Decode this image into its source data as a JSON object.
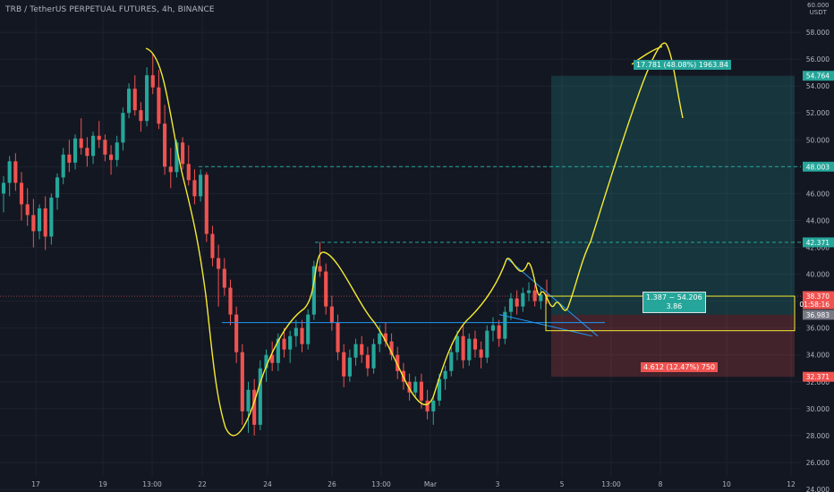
{
  "header": {
    "symbol_line": "TRB / TetherUS PERPETUAL FUTURES, 4h, BINANCE",
    "currency_top": "60.000",
    "currency": "USDT"
  },
  "chart_data": {
    "type": "candlestick",
    "ylim": [
      23.8,
      60.4
    ],
    "yticks": [
      24,
      26,
      28,
      30,
      32,
      34,
      36,
      38,
      40,
      42,
      44,
      46,
      48,
      50,
      52,
      54,
      56,
      58
    ],
    "ytick_labels": [
      "24.000",
      "26.000",
      "28.000",
      "30.000",
      "32.000",
      "34.000",
      "36.000",
      "38.000",
      "40.000",
      "42.000",
      "44.000",
      "46.000",
      "48.000",
      "50.000",
      "52.000",
      "54.000",
      "56.000",
      "58.000"
    ],
    "xticks": [
      "17",
      "19",
      "13:00",
      "22",
      "24",
      "26",
      "13:00",
      "Mar",
      "3",
      "5",
      "13:00",
      "8",
      "10",
      "12"
    ],
    "colors": {
      "up": "#26a69a",
      "down": "#ef5350",
      "grid": "#1e222d",
      "axis_text": "#b2b5be",
      "drawing": "#f5eb32",
      "trendline": "#2196f3"
    },
    "candles": [
      {
        "o": 46.0,
        "h": 47.3,
        "l": 44.6,
        "c": 46.8
      },
      {
        "o": 46.8,
        "h": 48.8,
        "l": 45.8,
        "c": 48.4
      },
      {
        "o": 48.4,
        "h": 49.0,
        "l": 46.2,
        "c": 46.8
      },
      {
        "o": 46.8,
        "h": 47.6,
        "l": 44.0,
        "c": 45.2
      },
      {
        "o": 45.2,
        "h": 46.4,
        "l": 43.6,
        "c": 44.4
      },
      {
        "o": 44.4,
        "h": 45.6,
        "l": 42.0,
        "c": 43.2
      },
      {
        "o": 43.2,
        "h": 45.2,
        "l": 42.6,
        "c": 44.9
      },
      {
        "o": 44.9,
        "h": 45.8,
        "l": 41.8,
        "c": 42.8
      },
      {
        "o": 42.8,
        "h": 46.0,
        "l": 42.2,
        "c": 45.7
      },
      {
        "o": 45.7,
        "h": 47.5,
        "l": 44.8,
        "c": 47.2
      },
      {
        "o": 47.2,
        "h": 49.4,
        "l": 46.7,
        "c": 48.9
      },
      {
        "o": 48.9,
        "h": 50.0,
        "l": 47.6,
        "c": 48.3
      },
      {
        "o": 48.3,
        "h": 50.4,
        "l": 47.8,
        "c": 50.1
      },
      {
        "o": 50.1,
        "h": 51.6,
        "l": 48.9,
        "c": 49.4
      },
      {
        "o": 49.4,
        "h": 50.2,
        "l": 48.0,
        "c": 48.8
      },
      {
        "o": 48.8,
        "h": 50.6,
        "l": 48.2,
        "c": 50.3
      },
      {
        "o": 50.3,
        "h": 51.4,
        "l": 49.4,
        "c": 50.0
      },
      {
        "o": 50.0,
        "h": 50.4,
        "l": 48.4,
        "c": 48.9
      },
      {
        "o": 48.9,
        "h": 49.6,
        "l": 47.4,
        "c": 48.5
      },
      {
        "o": 48.5,
        "h": 50.3,
        "l": 48.0,
        "c": 49.8
      },
      {
        "o": 49.8,
        "h": 52.4,
        "l": 49.2,
        "c": 52.0
      },
      {
        "o": 52.0,
        "h": 54.2,
        "l": 51.6,
        "c": 53.8
      },
      {
        "o": 53.8,
        "h": 54.8,
        "l": 51.8,
        "c": 52.2
      },
      {
        "o": 52.2,
        "h": 52.8,
        "l": 50.6,
        "c": 51.4
      },
      {
        "o": 51.4,
        "h": 55.4,
        "l": 51.0,
        "c": 54.8
      },
      {
        "o": 54.8,
        "h": 56.4,
        "l": 53.4,
        "c": 53.9
      },
      {
        "o": 53.9,
        "h": 55.2,
        "l": 50.8,
        "c": 51.2
      },
      {
        "o": 51.2,
        "h": 52.6,
        "l": 47.4,
        "c": 48.0
      },
      {
        "o": 48.0,
        "h": 49.4,
        "l": 46.4,
        "c": 47.6
      },
      {
        "o": 47.6,
        "h": 50.0,
        "l": 47.2,
        "c": 49.8
      },
      {
        "o": 49.8,
        "h": 50.2,
        "l": 47.8,
        "c": 48.2
      },
      {
        "o": 48.2,
        "h": 49.6,
        "l": 46.6,
        "c": 47.0
      },
      {
        "o": 47.0,
        "h": 47.8,
        "l": 45.2,
        "c": 45.8
      },
      {
        "o": 45.8,
        "h": 47.8,
        "l": 45.4,
        "c": 47.4
      },
      {
        "o": 47.4,
        "h": 47.6,
        "l": 42.4,
        "c": 43.0
      },
      {
        "o": 43.0,
        "h": 43.6,
        "l": 40.6,
        "c": 41.2
      },
      {
        "o": 41.2,
        "h": 42.2,
        "l": 37.6,
        "c": 40.4
      },
      {
        "o": 40.4,
        "h": 41.2,
        "l": 38.4,
        "c": 39.0
      },
      {
        "o": 39.0,
        "h": 39.6,
        "l": 36.2,
        "c": 37.0
      },
      {
        "o": 37.0,
        "h": 37.6,
        "l": 33.4,
        "c": 34.2
      },
      {
        "o": 34.2,
        "h": 34.8,
        "l": 28.8,
        "c": 29.8
      },
      {
        "o": 29.8,
        "h": 32.0,
        "l": 28.2,
        "c": 31.4
      },
      {
        "o": 31.4,
        "h": 32.2,
        "l": 28.0,
        "c": 28.8
      },
      {
        "o": 28.8,
        "h": 33.6,
        "l": 28.4,
        "c": 33.0
      },
      {
        "o": 33.0,
        "h": 34.4,
        "l": 32.0,
        "c": 34.0
      },
      {
        "o": 34.0,
        "h": 35.0,
        "l": 32.8,
        "c": 33.4
      },
      {
        "o": 33.4,
        "h": 35.6,
        "l": 32.8,
        "c": 35.2
      },
      {
        "o": 35.2,
        "h": 36.0,
        "l": 33.8,
        "c": 34.4
      },
      {
        "o": 34.4,
        "h": 35.8,
        "l": 33.4,
        "c": 35.4
      },
      {
        "o": 35.4,
        "h": 36.6,
        "l": 34.6,
        "c": 36.0
      },
      {
        "o": 36.0,
        "h": 36.6,
        "l": 34.2,
        "c": 34.8
      },
      {
        "o": 34.8,
        "h": 37.4,
        "l": 34.4,
        "c": 37.0
      },
      {
        "o": 37.0,
        "h": 41.0,
        "l": 36.6,
        "c": 40.6
      },
      {
        "o": 40.6,
        "h": 42.4,
        "l": 39.8,
        "c": 40.2
      },
      {
        "o": 40.2,
        "h": 40.8,
        "l": 37.0,
        "c": 37.6
      },
      {
        "o": 37.6,
        "h": 38.4,
        "l": 35.8,
        "c": 36.4
      },
      {
        "o": 36.4,
        "h": 37.0,
        "l": 33.6,
        "c": 34.2
      },
      {
        "o": 34.2,
        "h": 34.8,
        "l": 31.6,
        "c": 32.4
      },
      {
        "o": 32.4,
        "h": 34.4,
        "l": 32.0,
        "c": 33.8
      },
      {
        "o": 33.8,
        "h": 35.2,
        "l": 33.2,
        "c": 34.8
      },
      {
        "o": 34.8,
        "h": 35.4,
        "l": 33.4,
        "c": 34.0
      },
      {
        "o": 34.0,
        "h": 34.6,
        "l": 32.4,
        "c": 33.0
      },
      {
        "o": 33.0,
        "h": 35.2,
        "l": 32.6,
        "c": 34.8
      },
      {
        "o": 34.8,
        "h": 36.2,
        "l": 34.2,
        "c": 35.6
      },
      {
        "o": 35.6,
        "h": 36.4,
        "l": 34.6,
        "c": 35.0
      },
      {
        "o": 35.0,
        "h": 35.6,
        "l": 33.6,
        "c": 34.0
      },
      {
        "o": 34.0,
        "h": 34.6,
        "l": 32.2,
        "c": 32.8
      },
      {
        "o": 32.8,
        "h": 33.4,
        "l": 31.4,
        "c": 32.0
      },
      {
        "o": 32.0,
        "h": 32.6,
        "l": 30.6,
        "c": 31.2
      },
      {
        "o": 31.2,
        "h": 32.4,
        "l": 30.8,
        "c": 32.0
      },
      {
        "o": 32.0,
        "h": 32.6,
        "l": 30.0,
        "c": 30.6
      },
      {
        "o": 30.6,
        "h": 31.4,
        "l": 29.2,
        "c": 29.8
      },
      {
        "o": 29.8,
        "h": 31.0,
        "l": 28.8,
        "c": 30.6
      },
      {
        "o": 30.6,
        "h": 32.6,
        "l": 30.2,
        "c": 32.2
      },
      {
        "o": 32.2,
        "h": 33.2,
        "l": 31.4,
        "c": 32.8
      },
      {
        "o": 32.8,
        "h": 34.6,
        "l": 32.4,
        "c": 34.2
      },
      {
        "o": 34.2,
        "h": 35.8,
        "l": 33.6,
        "c": 35.4
      },
      {
        "o": 35.4,
        "h": 36.2,
        "l": 33.0,
        "c": 33.6
      },
      {
        "o": 33.6,
        "h": 35.6,
        "l": 33.2,
        "c": 35.2
      },
      {
        "o": 35.2,
        "h": 35.8,
        "l": 33.8,
        "c": 34.4
      },
      {
        "o": 34.4,
        "h": 35.0,
        "l": 33.0,
        "c": 33.8
      },
      {
        "o": 33.8,
        "h": 36.2,
        "l": 33.4,
        "c": 35.8
      },
      {
        "o": 35.8,
        "h": 36.8,
        "l": 35.0,
        "c": 36.2
      },
      {
        "o": 36.2,
        "h": 36.6,
        "l": 34.6,
        "c": 35.2
      },
      {
        "o": 35.2,
        "h": 37.6,
        "l": 34.8,
        "c": 37.2
      },
      {
        "o": 37.2,
        "h": 38.6,
        "l": 36.6,
        "c": 38.2
      },
      {
        "o": 38.2,
        "h": 38.8,
        "l": 37.0,
        "c": 37.6
      },
      {
        "o": 37.6,
        "h": 39.0,
        "l": 37.2,
        "c": 38.6
      },
      {
        "o": 38.6,
        "h": 39.4,
        "l": 38.0,
        "c": 38.8
      },
      {
        "o": 38.8,
        "h": 39.2,
        "l": 37.6,
        "c": 38.0
      },
      {
        "o": 38.0,
        "h": 39.0,
        "l": 37.4,
        "c": 38.5
      },
      {
        "o": 38.5,
        "h": 39.6,
        "l": 37.8,
        "c": 38.37
      }
    ],
    "horizontal_levels": [
      {
        "value": 48.003,
        "label": "48.003",
        "style": "dashed",
        "color": "#26a69a"
      },
      {
        "value": 42.371,
        "label": "42.371",
        "style": "dashed",
        "color": "#26a69a"
      }
    ],
    "position": {
      "entry": 36.983,
      "target": 54.764,
      "stop": 32.371,
      "entry_label": "36.983",
      "target_label": "54.764",
      "stop_label": "32.371",
      "target_text": "17.781 (48.08%) 1963.84",
      "stop_text": "4.612 (12.47%) 750",
      "ratio_text_1": "1.387 ~ 54.206",
      "ratio_text_2": "3.86"
    },
    "last_price": {
      "value": 38.37,
      "label": "38.370",
      "countdown": "01:58:16"
    }
  }
}
